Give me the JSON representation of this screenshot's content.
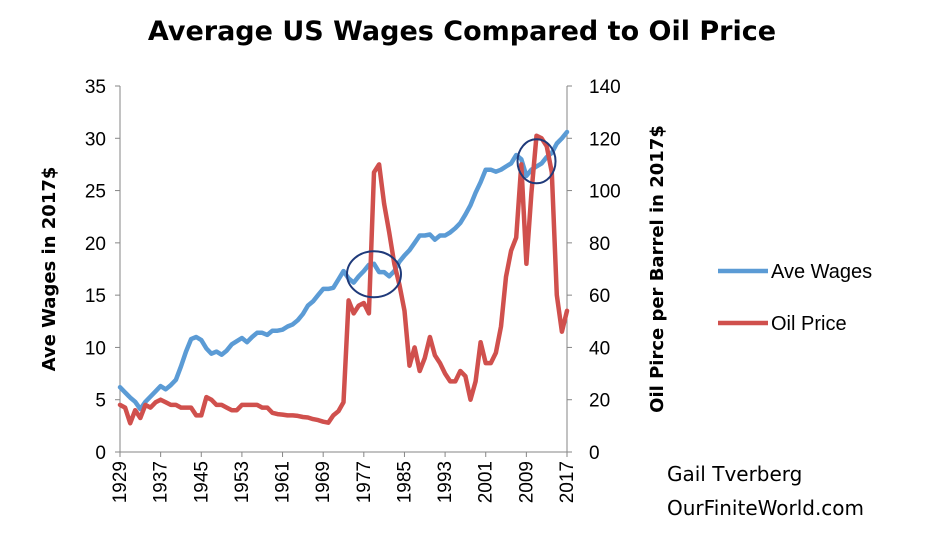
{
  "chart_data": {
    "type": "line",
    "title": "Average US Wages Compared to Oil Price",
    "ylabel_left": "Ave Wages in 2017$",
    "ylabel_right": "Oil Pirce per Barrel in 2017$",
    "ylim_left": [
      0,
      35
    ],
    "ylim_right": [
      0,
      140
    ],
    "yticks_left": [
      "0",
      "5",
      "10",
      "15",
      "20",
      "25",
      "30",
      "35"
    ],
    "yticks_right": [
      "0",
      "20",
      "40",
      "60",
      "80",
      "100",
      "120",
      "140"
    ],
    "xlim": [
      1929,
      2017
    ],
    "xticks": [
      "1929",
      "1937",
      "1945",
      "1953",
      "1961",
      "1969",
      "1977",
      "1985",
      "1993",
      "2001",
      "2009",
      "2017"
    ],
    "grid": false,
    "legend_position": "right",
    "series": [
      {
        "name": "Ave Wages",
        "axis": "left",
        "color": "#5b9bd5",
        "x": [
          1929,
          1930,
          1931,
          1932,
          1933,
          1934,
          1935,
          1936,
          1937,
          1938,
          1939,
          1940,
          1941,
          1942,
          1943,
          1944,
          1945,
          1946,
          1947,
          1948,
          1949,
          1950,
          1951,
          1952,
          1953,
          1954,
          1955,
          1956,
          1957,
          1958,
          1959,
          1960,
          1961,
          1962,
          1963,
          1964,
          1965,
          1966,
          1967,
          1968,
          1969,
          1970,
          1971,
          1972,
          1973,
          1974,
          1975,
          1976,
          1977,
          1978,
          1979,
          1980,
          1981,
          1982,
          1983,
          1984,
          1985,
          1986,
          1987,
          1988,
          1989,
          1990,
          1991,
          1992,
          1993,
          1994,
          1995,
          1996,
          1997,
          1998,
          1999,
          2000,
          2001,
          2002,
          2003,
          2004,
          2005,
          2006,
          2007,
          2008,
          2009,
          2010,
          2011,
          2012,
          2013,
          2014,
          2015,
          2016,
          2017
        ],
        "y": [
          6.2,
          5.7,
          5.2,
          4.8,
          4.1,
          4.8,
          5.3,
          5.8,
          6.3,
          6.0,
          6.4,
          6.9,
          8.2,
          9.6,
          10.8,
          11.0,
          10.7,
          9.9,
          9.4,
          9.6,
          9.3,
          9.7,
          10.3,
          10.6,
          10.9,
          10.5,
          11.0,
          11.4,
          11.4,
          11.2,
          11.6,
          11.6,
          11.7,
          12.0,
          12.2,
          12.6,
          13.2,
          14.0,
          14.4,
          15.0,
          15.6,
          15.6,
          15.7,
          16.5,
          17.3,
          16.6,
          16.2,
          16.8,
          17.3,
          17.9,
          18.0,
          17.2,
          17.2,
          16.8,
          17.3,
          18.2,
          18.8,
          19.3,
          20.0,
          20.7,
          20.7,
          20.8,
          20.3,
          20.7,
          20.7,
          21.0,
          21.4,
          21.9,
          22.7,
          23.6,
          24.8,
          25.8,
          27.0,
          27.0,
          26.8,
          27.0,
          27.3,
          27.6,
          28.4,
          28.0,
          26.4,
          27.0,
          27.3,
          27.6,
          28.2,
          28.6,
          29.5,
          30.0,
          30.6
        ]
      },
      {
        "name": "Oil Price",
        "axis": "right",
        "color": "#d0504d",
        "x": [
          1929,
          1930,
          1931,
          1932,
          1933,
          1934,
          1935,
          1936,
          1937,
          1938,
          1939,
          1940,
          1941,
          1942,
          1943,
          1944,
          1945,
          1946,
          1947,
          1948,
          1949,
          1950,
          1951,
          1952,
          1953,
          1954,
          1955,
          1956,
          1957,
          1958,
          1959,
          1960,
          1961,
          1962,
          1963,
          1964,
          1965,
          1966,
          1967,
          1968,
          1969,
          1970,
          1971,
          1972,
          1973,
          1974,
          1975,
          1976,
          1977,
          1978,
          1979,
          1980,
          1981,
          1982,
          1983,
          1984,
          1985,
          1986,
          1987,
          1988,
          1989,
          1990,
          1991,
          1992,
          1993,
          1994,
          1995,
          1996,
          1997,
          1998,
          1999,
          2000,
          2001,
          2002,
          2003,
          2004,
          2005,
          2006,
          2007,
          2008,
          2009,
          2010,
          2011,
          2012,
          2013,
          2014,
          2015,
          2016,
          2017
        ],
        "y": [
          18,
          17,
          11,
          16,
          13,
          18,
          17,
          19,
          20,
          19,
          18,
          18,
          17,
          17,
          17,
          14,
          14,
          21,
          20,
          18,
          18,
          17,
          16,
          16,
          18,
          18,
          18,
          18,
          17,
          17,
          15,
          14.5,
          14.3,
          14,
          14,
          13.8,
          13.4,
          13.2,
          12.6,
          12.2,
          11.6,
          11.2,
          14,
          15.6,
          19,
          58,
          53,
          56,
          57,
          53,
          107,
          110,
          95,
          84,
          72,
          64,
          54,
          33,
          40,
          31,
          36,
          44,
          37,
          34,
          30,
          27,
          27,
          31,
          29,
          20,
          27,
          42,
          34,
          34,
          38,
          48,
          67,
          77,
          82,
          110,
          72,
          99,
          121,
          120,
          117,
          107,
          60,
          46,
          54
        ]
      }
    ],
    "annotations": [
      "circle-1979",
      "circle-2011"
    ],
    "credit": [
      "Gail Tverberg",
      "OurFiniteWorld.com"
    ]
  }
}
